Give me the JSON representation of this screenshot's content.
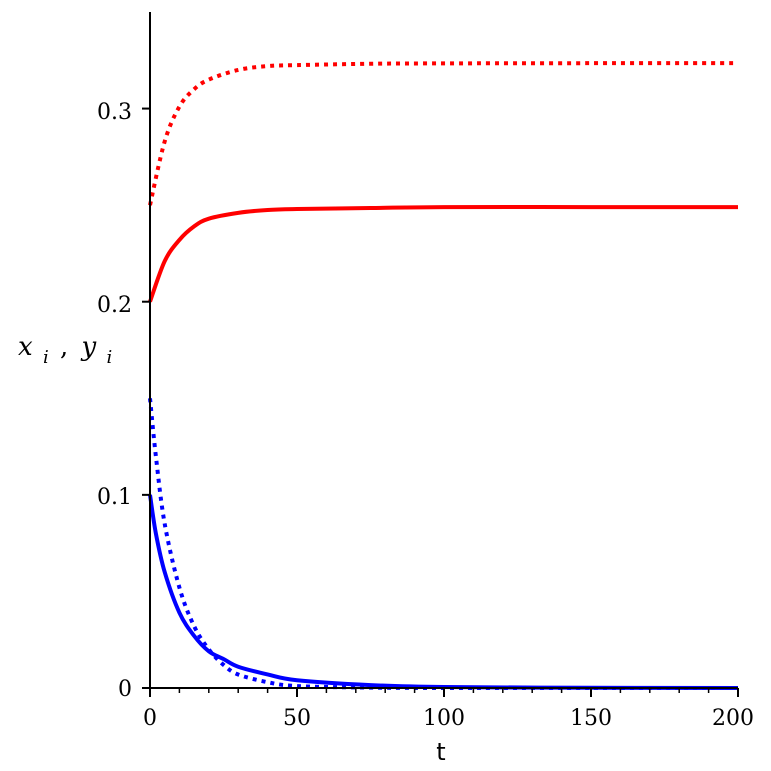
{
  "chart_data": {
    "type": "line",
    "xlabel": "t",
    "ylabel": {
      "x_part": "x",
      "subscript": "i",
      "separator": ",",
      "y_part": "y"
    },
    "xlim": [
      0,
      200
    ],
    "ylim": [
      0,
      0.35
    ],
    "x_ticks": [
      0,
      50,
      100,
      150,
      200
    ],
    "x_tick_labels": [
      "0",
      "50",
      "100",
      "150",
      "200"
    ],
    "y_ticks": [
      0,
      0.1,
      0.2,
      0.3
    ],
    "y_tick_labels": [
      "0",
      "0.1",
      "0.2",
      "0.3"
    ],
    "grid": false,
    "series": [
      {
        "color": "#ff0000",
        "style": "dotted",
        "x": [
          0,
          5,
          10,
          15,
          20,
          30,
          40,
          50,
          75,
          100,
          150,
          200
        ],
        "y": [
          0.25,
          0.283,
          0.301,
          0.31,
          0.315,
          0.32,
          0.322,
          0.3225,
          0.3232,
          0.3234,
          0.3235,
          0.3235
        ]
      },
      {
        "color": "#ff0000",
        "style": "solid",
        "x": [
          0,
          5,
          10,
          15,
          20,
          30,
          40,
          50,
          75,
          100,
          150,
          200
        ],
        "y": [
          0.2,
          0.221,
          0.232,
          0.239,
          0.243,
          0.246,
          0.2475,
          0.248,
          0.2485,
          0.249,
          0.249,
          0.249
        ]
      },
      {
        "color": "#0000ff",
        "style": "solid",
        "x": [
          0,
          2,
          5,
          10,
          15,
          20,
          25,
          30,
          40,
          50,
          75,
          100,
          150,
          200
        ],
        "y": [
          0.1,
          0.08,
          0.06,
          0.039,
          0.027,
          0.019,
          0.015,
          0.011,
          0.007,
          0.004,
          0.0015,
          0.0005,
          0.0001,
          0.0
        ]
      },
      {
        "color": "#0000ff",
        "style": "dotted",
        "x": [
          0,
          2,
          5,
          10,
          15,
          20,
          25,
          30,
          40,
          50,
          75,
          100,
          150,
          200
        ],
        "y": [
          0.15,
          0.12,
          0.085,
          0.052,
          0.032,
          0.02,
          0.012,
          0.007,
          0.003,
          0.001,
          0.0002,
          0.0,
          0.0,
          0.0
        ]
      }
    ]
  }
}
